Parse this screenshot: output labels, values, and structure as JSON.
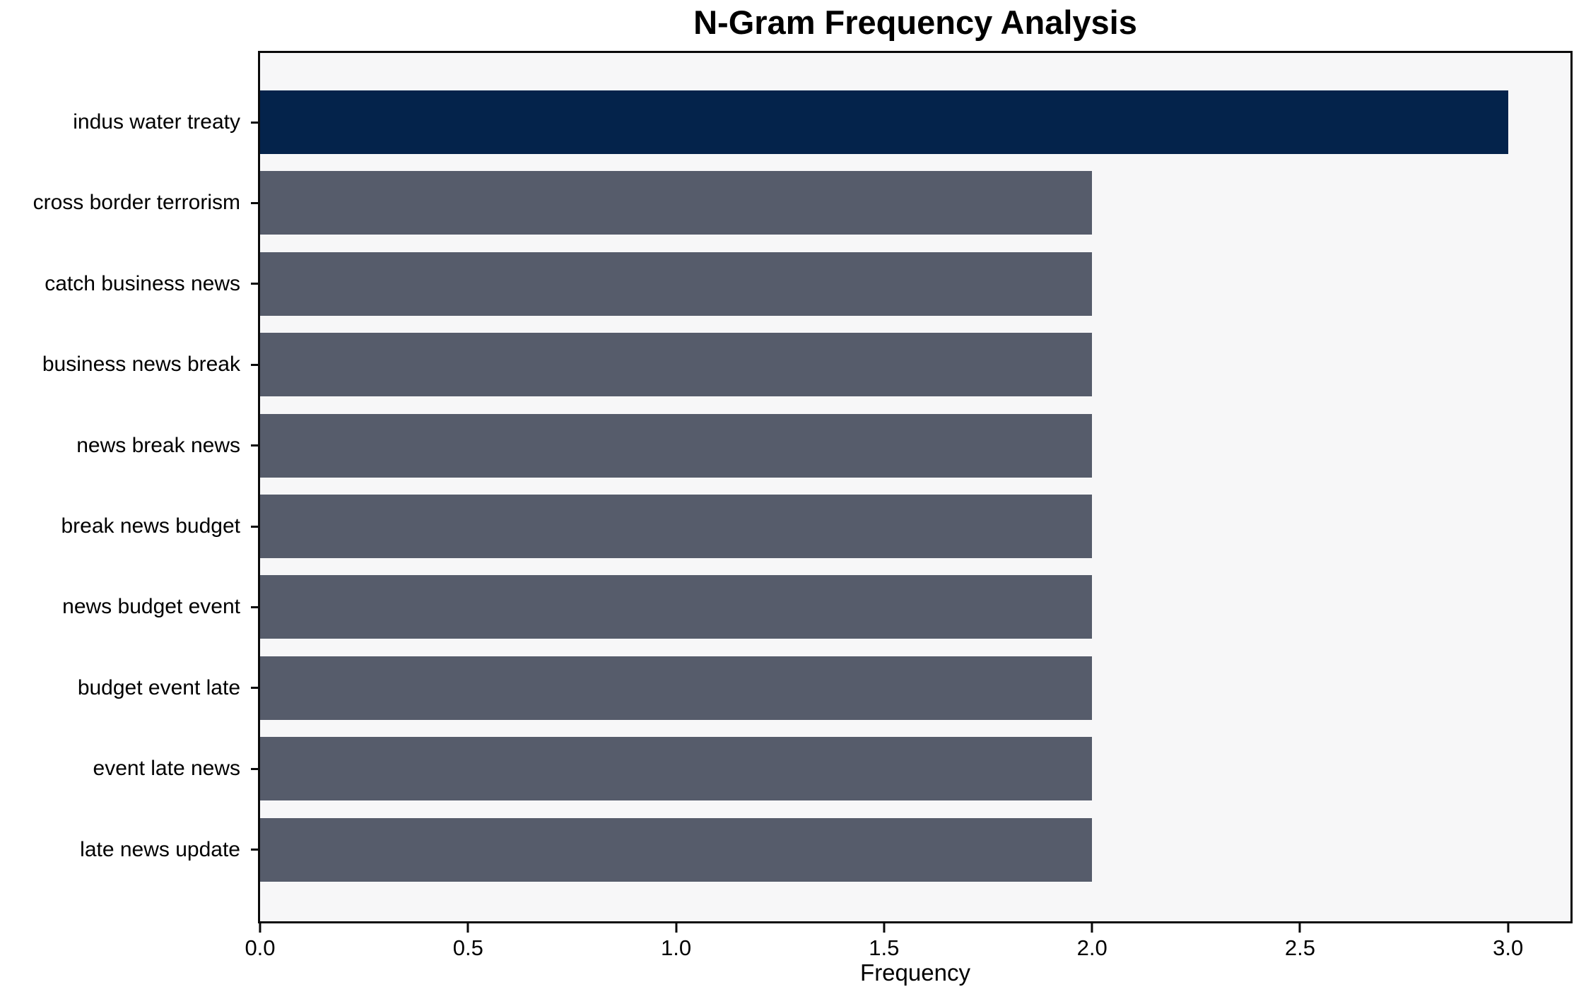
{
  "chart_data": {
    "type": "bar",
    "orientation": "horizontal",
    "title": "N-Gram Frequency Analysis",
    "xlabel": "Frequency",
    "ylabel": "",
    "categories": [
      "indus water treaty",
      "cross border terrorism",
      "catch business news",
      "business news break",
      "news break news",
      "break news budget",
      "news budget event",
      "budget event late",
      "event late news",
      "late news update"
    ],
    "values": [
      3,
      2,
      2,
      2,
      2,
      2,
      2,
      2,
      2,
      2
    ],
    "xlim": [
      0,
      3.15
    ],
    "xticks": [
      0.0,
      0.5,
      1.0,
      1.5,
      2.0,
      2.5,
      3.0
    ],
    "xtick_labels": [
      "0.0",
      "0.5",
      "1.0",
      "1.5",
      "2.0",
      "2.5",
      "3.0"
    ],
    "grid": false,
    "legend": null,
    "highlight_index": 0,
    "colors": {
      "highlight": "#04234b",
      "default": "#565c6b",
      "plot_background": "#f7f7f8",
      "figure_background": "#ffffff",
      "spine": "#0a0a0a"
    }
  }
}
